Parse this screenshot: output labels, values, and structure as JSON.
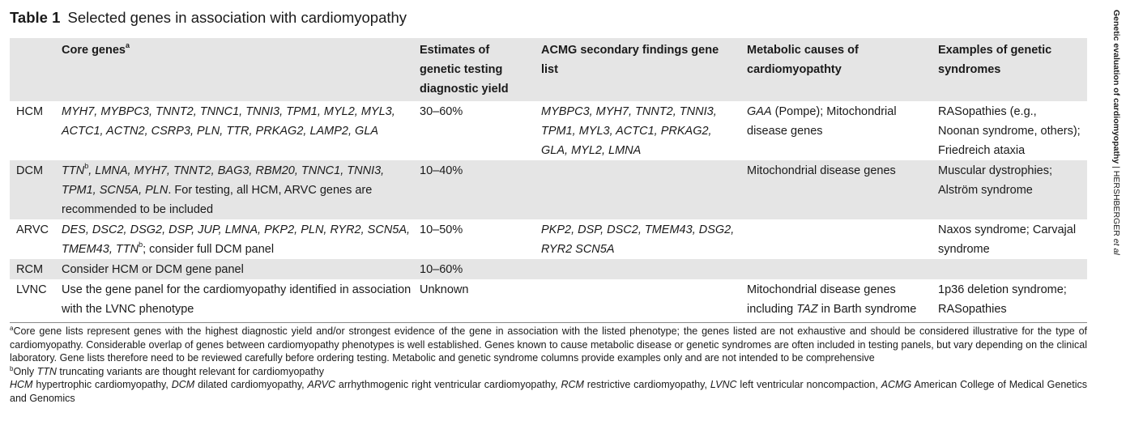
{
  "title": {
    "label": "Table 1",
    "text": "Selected genes in association with cardiomyopathy"
  },
  "headers": {
    "col0": "",
    "col1": "Core genes",
    "col1_sup": "a",
    "col2": "Estimates of genetic testing diagnostic yield",
    "col3": "ACMG secondary findings gene list",
    "col4": "Metabolic causes of cardiomyopathty",
    "col5": "Examples of genetic syndromes"
  },
  "rows": [
    {
      "disease": "HCM",
      "core_genes": "MYH7, MYBPC3, TNNT2, TNNC1, TNNI3, TPM1, MYL2, MYL3, ACTC1, ACTN2, CSRP3, PLN, TTR, PRKAG2, LAMP2, GLA",
      "yield": "30–60%",
      "acmg": "MYBPC3, MYH7, TNNT2, TNNI3, TPM1, MYL3, ACTC1, PRKAG2, GLA, MYL2, LMNA",
      "metabolic_italic": "GAA",
      "metabolic": " (Pompe); Mitochondrial disease genes",
      "syndromes": "RASopathies (e.g., Noonan syndrome, others); Friedreich ataxia"
    },
    {
      "disease": "DCM",
      "core_genes_a": "TTN",
      "core_genes_sup": "b",
      "core_genes_b": ", LMNA, MYH7, TNNT2, BAG3, RBM20, TNNC1, TNNI3, TPM1, SCN5A, PLN",
      "core_genes_c": ". For testing, all HCM, ARVC genes are recommended to be included",
      "yield": "10–40%",
      "acmg": "",
      "metabolic": "Mitochondrial disease genes",
      "syndromes": "Muscular dystrophies; Alström syndrome"
    },
    {
      "disease": "ARVC",
      "core_genes_a": "DES, DSC2, DSG2, DSP, JUP, LMNA, PKP2, PLN, RYR2, SCN5A, TMEM43, TTN",
      "core_genes_sup": "b",
      "core_genes_c": "; consider full DCM panel",
      "yield": "10–50%",
      "acmg": "PKP2, DSP, DSC2, TMEM43, DSG2, RYR2 SCN5A",
      "metabolic": "",
      "syndromes": "Naxos syndrome; Carvajal syndrome"
    },
    {
      "disease": "RCM",
      "core_genes": "Consider HCM or DCM gene panel",
      "yield": "10–60%",
      "acmg": "",
      "metabolic": "",
      "syndromes": ""
    },
    {
      "disease": "LVNC",
      "core_genes": "Use the gene panel for the cardiomyopathy identified in association with the LVNC phenotype",
      "yield": "Unknown",
      "acmg": "",
      "metabolic_a": "Mitochondrial disease genes including ",
      "metabolic_italic": "TAZ",
      "metabolic_b": " in Barth syndrome",
      "syndromes": "1p36 deletion syndrome; RASopathies"
    }
  ],
  "footnotes": {
    "a_mark": "a",
    "a_text": "Core gene lists represent genes with the highest diagnostic yield and/or strongest evidence of the gene in association with the listed phenotype; the genes listed are not exhaustive and should be considered illustrative for the type of cardiomyopathy. Considerable overlap of genes between cardiomyopathy phenotypes is well established. Genes known to cause metabolic disease or genetic syndromes are often included in testing panels, but vary depending on the clinical laboratory. Gene lists therefore need to be reviewed carefully before ordering testing. Metabolic and genetic syndrome columns provide examples only and are not intended to be comprehensive",
    "b_mark": "b",
    "b_pre": "Only ",
    "b_italic": "TTN",
    "b_post": " truncating variants are thought relevant for cardiomyopathy",
    "abbrev": [
      {
        "abbr": "HCM",
        "def": " hypertrophic cardiomyopathy, "
      },
      {
        "abbr": "DCM",
        "def": " dilated cardiomyopathy, "
      },
      {
        "abbr": "ARVC",
        "def": " arrhythmogenic right ventricular cardiomyopathy, "
      },
      {
        "abbr": "RCM",
        "def": " restrictive cardiomyopathy, "
      },
      {
        "abbr": "LVNC",
        "def": " left ventricular noncompaction, "
      },
      {
        "abbr": "ACMG",
        "def": " American College of Medical Genetics and Genomics"
      }
    ]
  },
  "running_head": {
    "title": "Genetic evaluation of cardiomyopathy",
    "separator": " | ",
    "author": "HERSHBERGER",
    "etal": " et al"
  }
}
